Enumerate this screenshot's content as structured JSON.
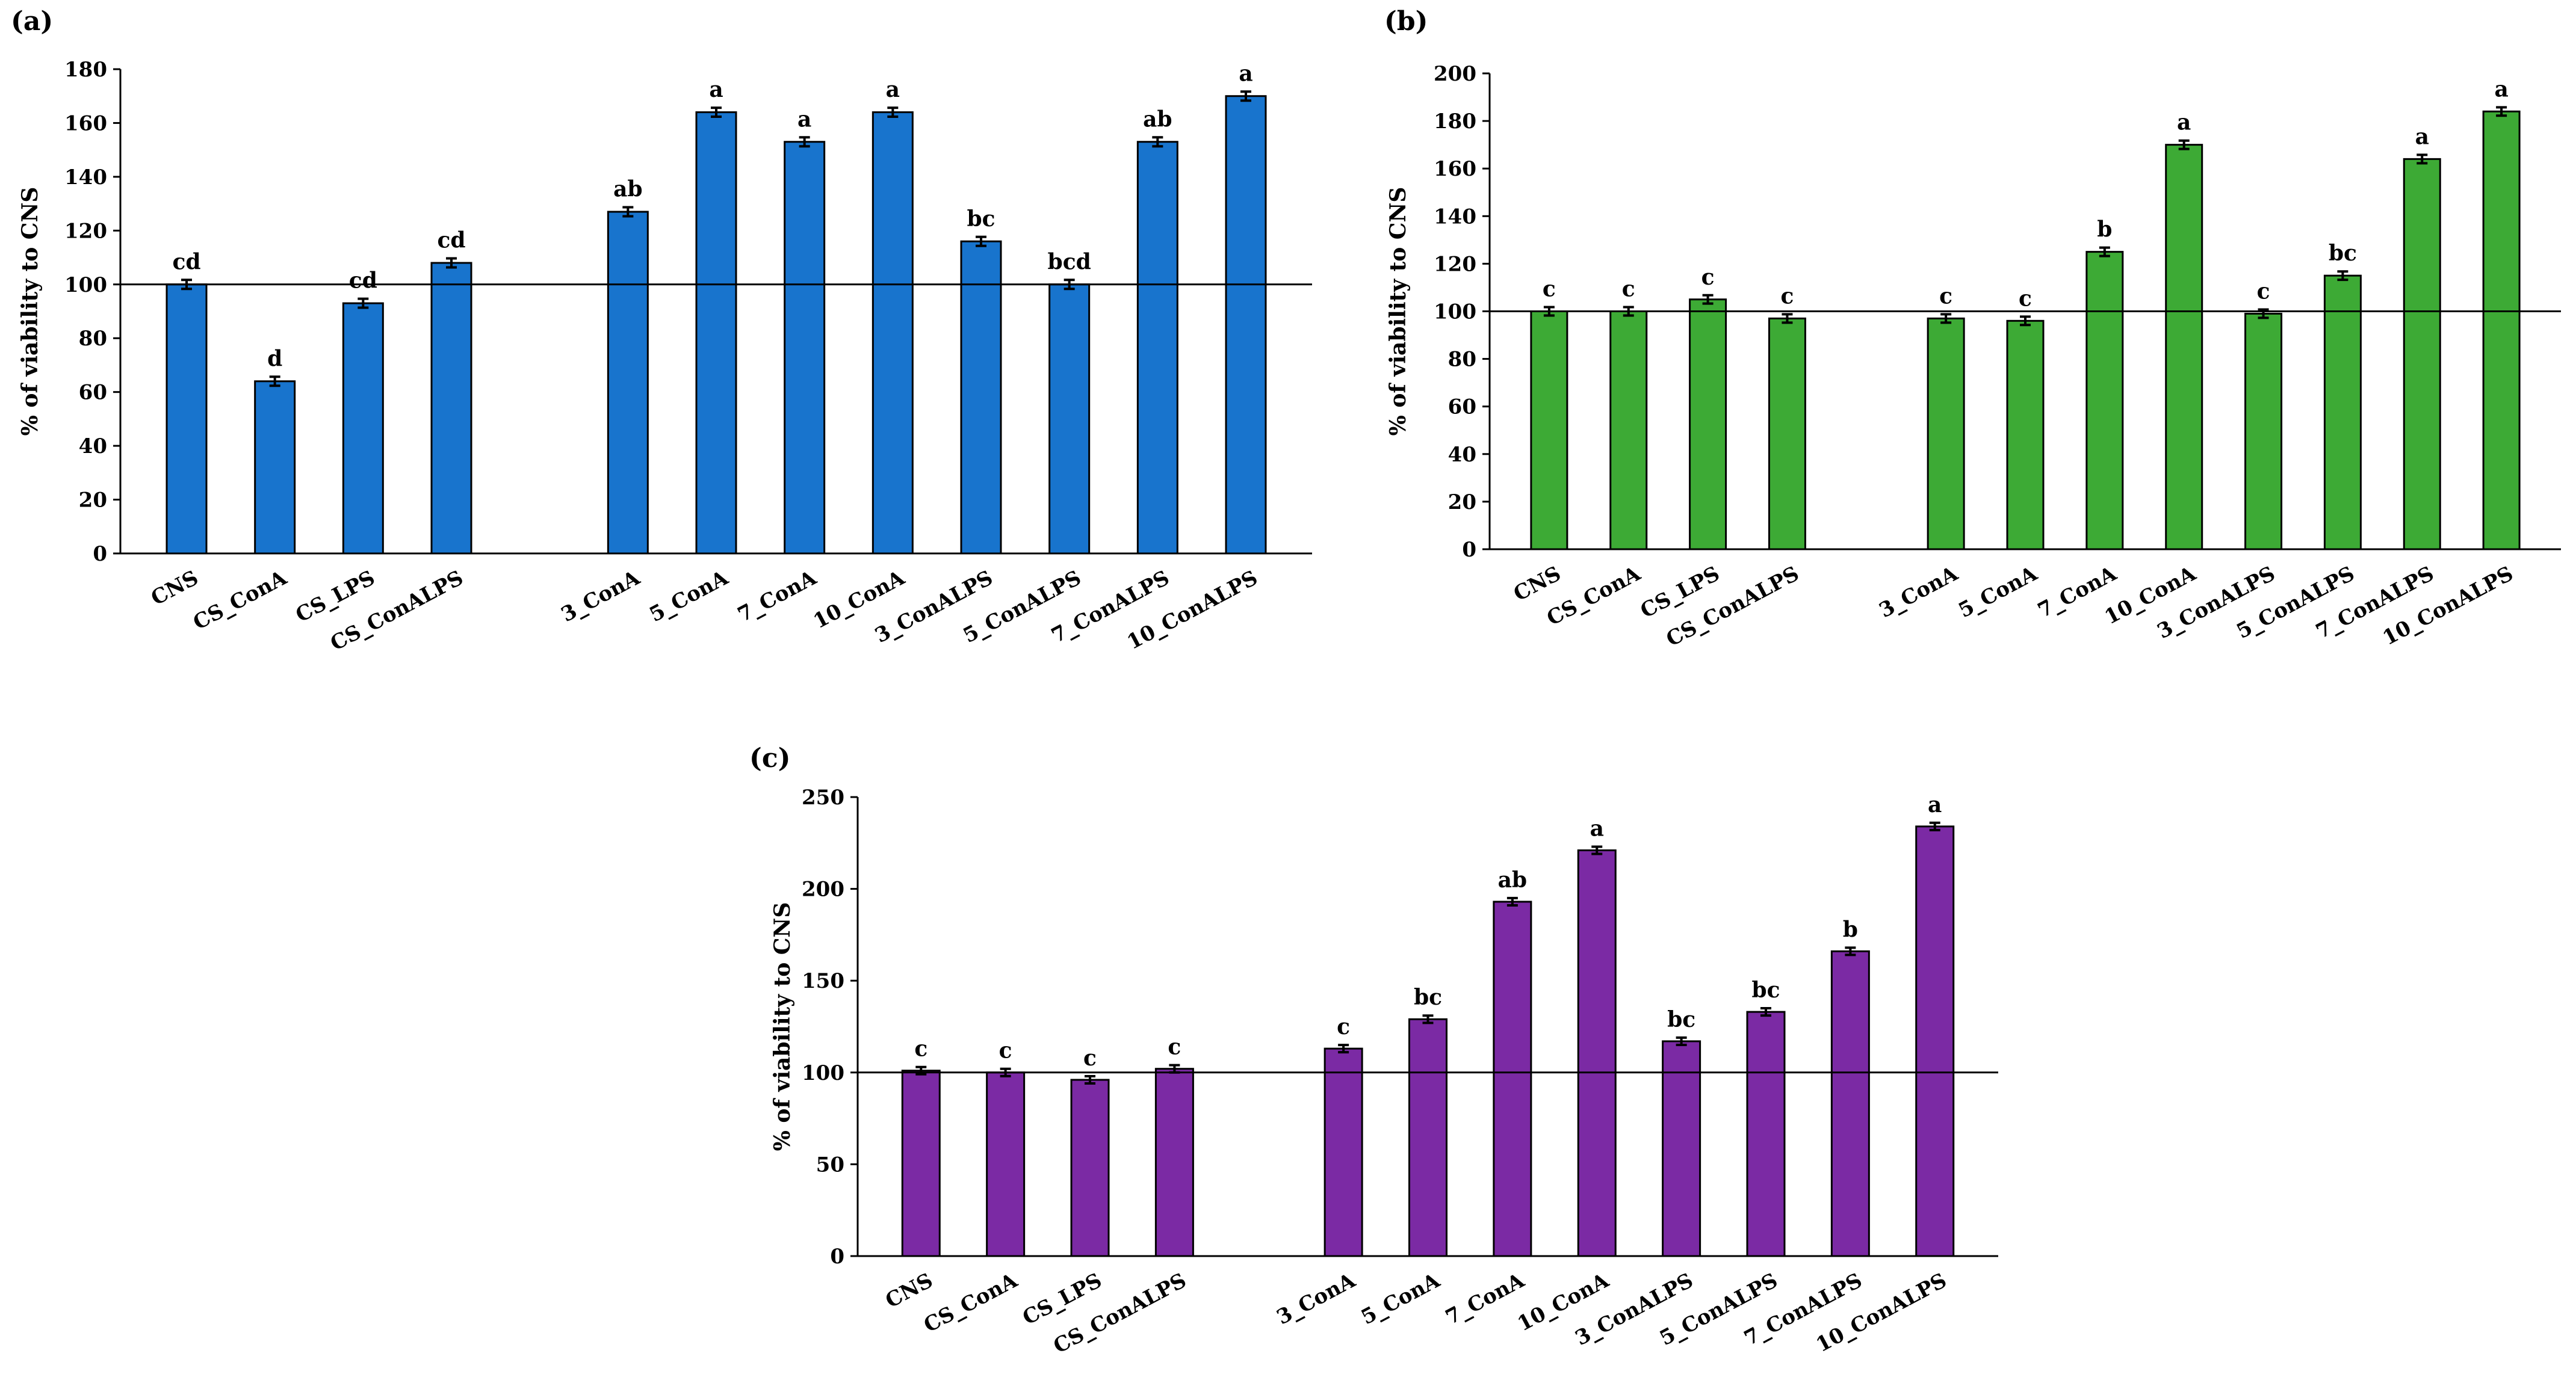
{
  "chart_data": [
    {
      "panel": "(a)",
      "type": "bar",
      "ylabel": "% of viability to CNS",
      "ylim": [
        0,
        180
      ],
      "yticks": [
        0,
        20,
        40,
        60,
        80,
        100,
        120,
        140,
        160,
        180
      ],
      "reference_line": 100,
      "color": "#1874CD",
      "categories": [
        "CNS",
        "CS_ConA",
        "CS_LPS",
        "CS_ConALPS",
        "3_ConA",
        "5_ConA",
        "7_ConA",
        "10_ConA",
        "3_ConALPS",
        "5_ConALPS",
        "7_ConALPS",
        "10_ConALPS"
      ],
      "values": [
        100,
        64,
        93,
        108,
        127,
        164,
        153,
        164,
        116,
        100,
        153,
        170
      ],
      "letters": [
        "cd",
        "d",
        "cd",
        "cd",
        "ab",
        "a",
        "a",
        "a",
        "bc",
        "bcd",
        "ab",
        "a"
      ]
    },
    {
      "panel": "(b)",
      "type": "bar",
      "ylabel": "% of viability to CNS",
      "ylim": [
        0,
        200
      ],
      "yticks": [
        0,
        20,
        40,
        60,
        80,
        100,
        120,
        140,
        160,
        180,
        200
      ],
      "reference_line": 100,
      "color": "#3DAA35",
      "categories": [
        "CNS",
        "CS_ConA",
        "CS_LPS",
        "CS_ConALPS",
        "3_ConA",
        "5_ConA",
        "7_ConA",
        "10_ConA",
        "3_ConALPS",
        "5_ConALPS",
        "7_ConALPS",
        "10_ConALPS"
      ],
      "values": [
        100,
        100,
        105,
        97,
        97,
        96,
        125,
        170,
        99,
        115,
        164,
        184
      ],
      "letters": [
        "c",
        "c",
        "c",
        "c",
        "c",
        "c",
        "b",
        "a",
        "c",
        "bc",
        "a",
        "a"
      ]
    },
    {
      "panel": "(c)",
      "type": "bar",
      "ylabel": "% of viability to CNS",
      "ylim": [
        0,
        250
      ],
      "yticks": [
        0,
        50,
        100,
        150,
        200,
        250
      ],
      "reference_line": 100,
      "color": "#7B2AA4",
      "categories": [
        "CNS",
        "CS_ConA",
        "CS_LPS",
        "CS_ConALPS",
        "3_ConA",
        "5_ConA",
        "7_ConA",
        "10_ConA",
        "3_ConALPS",
        "5_ConALPS",
        "7_ConALPS",
        "10_ConALPS"
      ],
      "values": [
        101,
        100,
        96,
        102,
        113,
        129,
        193,
        221,
        117,
        133,
        166,
        234
      ],
      "letters": [
        "c",
        "c",
        "c",
        "c",
        "c",
        "bc",
        "ab",
        "a",
        "bc",
        "bc",
        "b",
        "a"
      ]
    }
  ]
}
